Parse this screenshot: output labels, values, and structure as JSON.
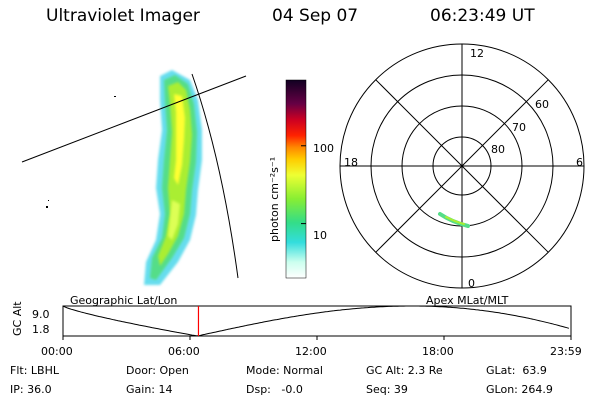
{
  "header": {
    "instrument": "Ultraviolet Imager",
    "date": "04 Sep 07",
    "time": "06:23:49 UT"
  },
  "colors": {
    "aurora_core": "#ffff33",
    "aurora_mid": "#aaee33",
    "aurora_edge": "#55dd88",
    "aurora_fringe": "#66ddee",
    "marker": "#ff0000"
  },
  "colorbar": {
    "label": "photon cm⁻²s⁻¹",
    "ticks": [
      "100",
      "10"
    ],
    "tick_values": [
      100,
      10
    ],
    "range": [
      2,
      700
    ],
    "scale": "log"
  },
  "polar": {
    "mlt_labels": {
      "top": "12",
      "left": "18",
      "right": "6",
      "bottom": "0"
    },
    "lat_labels": [
      "60",
      "70",
      "80"
    ],
    "lat_values": [
      60,
      70,
      80
    ]
  },
  "timeline": {
    "left_label": "Geographic Lat/Lon",
    "right_label": "Apex MLat/MLT",
    "axis_label": "GC Alt",
    "y_ticks": [
      "9.0",
      "1.8"
    ],
    "y_range": [
      1.8,
      9.0
    ],
    "x_ticks": [
      "00:00",
      "06:00",
      "12:00",
      "18:00",
      "23:59"
    ],
    "x_range_hours": [
      0,
      24
    ],
    "marker_hours": 6.4,
    "perigee_hours": [
      6.3,
      6.4
    ],
    "apogee_hours": [
      0,
      16.5
    ]
  },
  "status": {
    "filter": "Flt: LBHL",
    "ip": "IP: 36.0",
    "door": "Door: Open",
    "gain": "Gain: 14",
    "mode": "Mode: Normal",
    "dsp": "Dsp:   -0.0",
    "gc_alt": "GC Alt: 2.3 Re",
    "seq": "Seq: 39",
    "glat": "GLat:  63.9",
    "glon": "GLon: 264.9"
  }
}
